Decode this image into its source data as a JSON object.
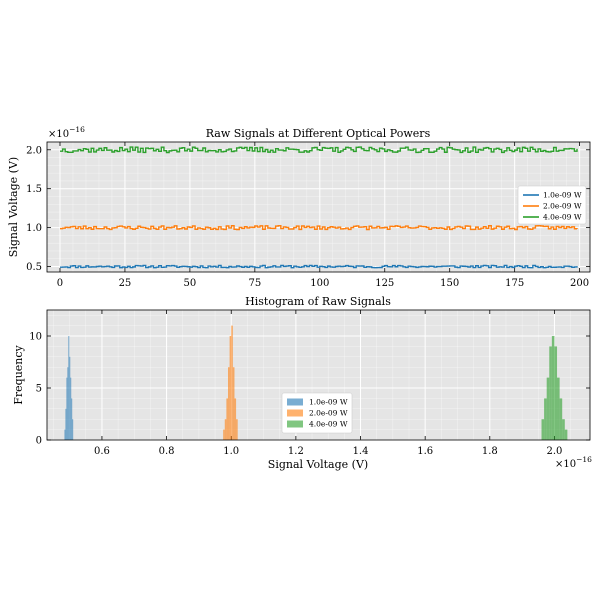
{
  "chart_data": [
    {
      "type": "line",
      "title": "Raw Signals at Different Optical Powers",
      "xlabel": "",
      "ylabel": "Signal Voltage (V)",
      "offset_text": "×10^−16",
      "offset_base": "×10",
      "offset_exp": "−16",
      "xlim": [
        -5,
        204
      ],
      "ylim": [
        0.43,
        2.1
      ],
      "xticks": [
        0,
        25,
        50,
        75,
        100,
        125,
        150,
        175,
        200
      ],
      "yticks": [
        0.5,
        1.0,
        1.5,
        2.0
      ],
      "ytick_labels": [
        "0.5",
        "1.0",
        "1.5",
        "2.0"
      ],
      "x": {
        "start": 0,
        "end": 199,
        "count": 200
      },
      "series": [
        {
          "name": "1.0e-09 W",
          "color": "#1f77b4",
          "mean": 0.5,
          "spread": 0.015,
          "seed": 11
        },
        {
          "name": "2.0e-09 W",
          "color": "#ff7f0e",
          "mean": 1.0,
          "spread": 0.025,
          "seed": 23
        },
        {
          "name": "4.0e-09 W",
          "color": "#2ca02c",
          "mean": 2.0,
          "spread": 0.035,
          "seed": 37
        }
      ],
      "grid": true,
      "legend_position": "right"
    },
    {
      "type": "bar",
      "subtype": "histogram",
      "title": "Histogram of Raw Signals",
      "xlabel": "Signal Voltage (V)",
      "ylabel": "Frequency",
      "offset_text": "×10^−16",
      "offset_base": "×10",
      "offset_exp": "−16",
      "xlim": [
        0.43,
        2.11
      ],
      "ylim": [
        0,
        12.5
      ],
      "xticks": [
        0.6,
        0.8,
        1.0,
        1.2,
        1.4,
        1.6,
        1.8,
        2.0
      ],
      "xtick_labels": [
        "0.6",
        "0.8",
        "1.0",
        "1.2",
        "1.4",
        "1.6",
        "1.8",
        "2.0"
      ],
      "yticks": [
        0,
        5,
        10
      ],
      "series": [
        {
          "name": "1.0e-09 W",
          "color": "#1f77b4",
          "bin_edges": [
            0.484,
            0.487,
            0.49,
            0.493,
            0.496,
            0.499,
            0.502,
            0.505,
            0.508,
            0.511
          ],
          "counts": [
            1,
            3,
            6,
            7,
            10,
            8,
            6,
            4,
            2
          ]
        },
        {
          "name": "2.0e-09 W",
          "color": "#ff7f0e",
          "bin_edges": [
            0.975,
            0.98,
            0.985,
            0.99,
            0.995,
            1.0,
            1.005,
            1.01,
            1.015,
            1.02
          ],
          "counts": [
            1,
            2,
            4,
            7,
            10,
            11,
            7,
            4,
            2
          ]
        },
        {
          "name": "4.0e-09 W",
          "color": "#2ca02c",
          "bin_edges": [
            1.96,
            1.968,
            1.976,
            1.984,
            1.992,
            2.0,
            2.008,
            2.016,
            2.024,
            2.032,
            2.04
          ],
          "counts": [
            2,
            4,
            6,
            9,
            10,
            9,
            6,
            4,
            2,
            1
          ]
        }
      ],
      "grid": true,
      "legend_position": "center"
    }
  ]
}
